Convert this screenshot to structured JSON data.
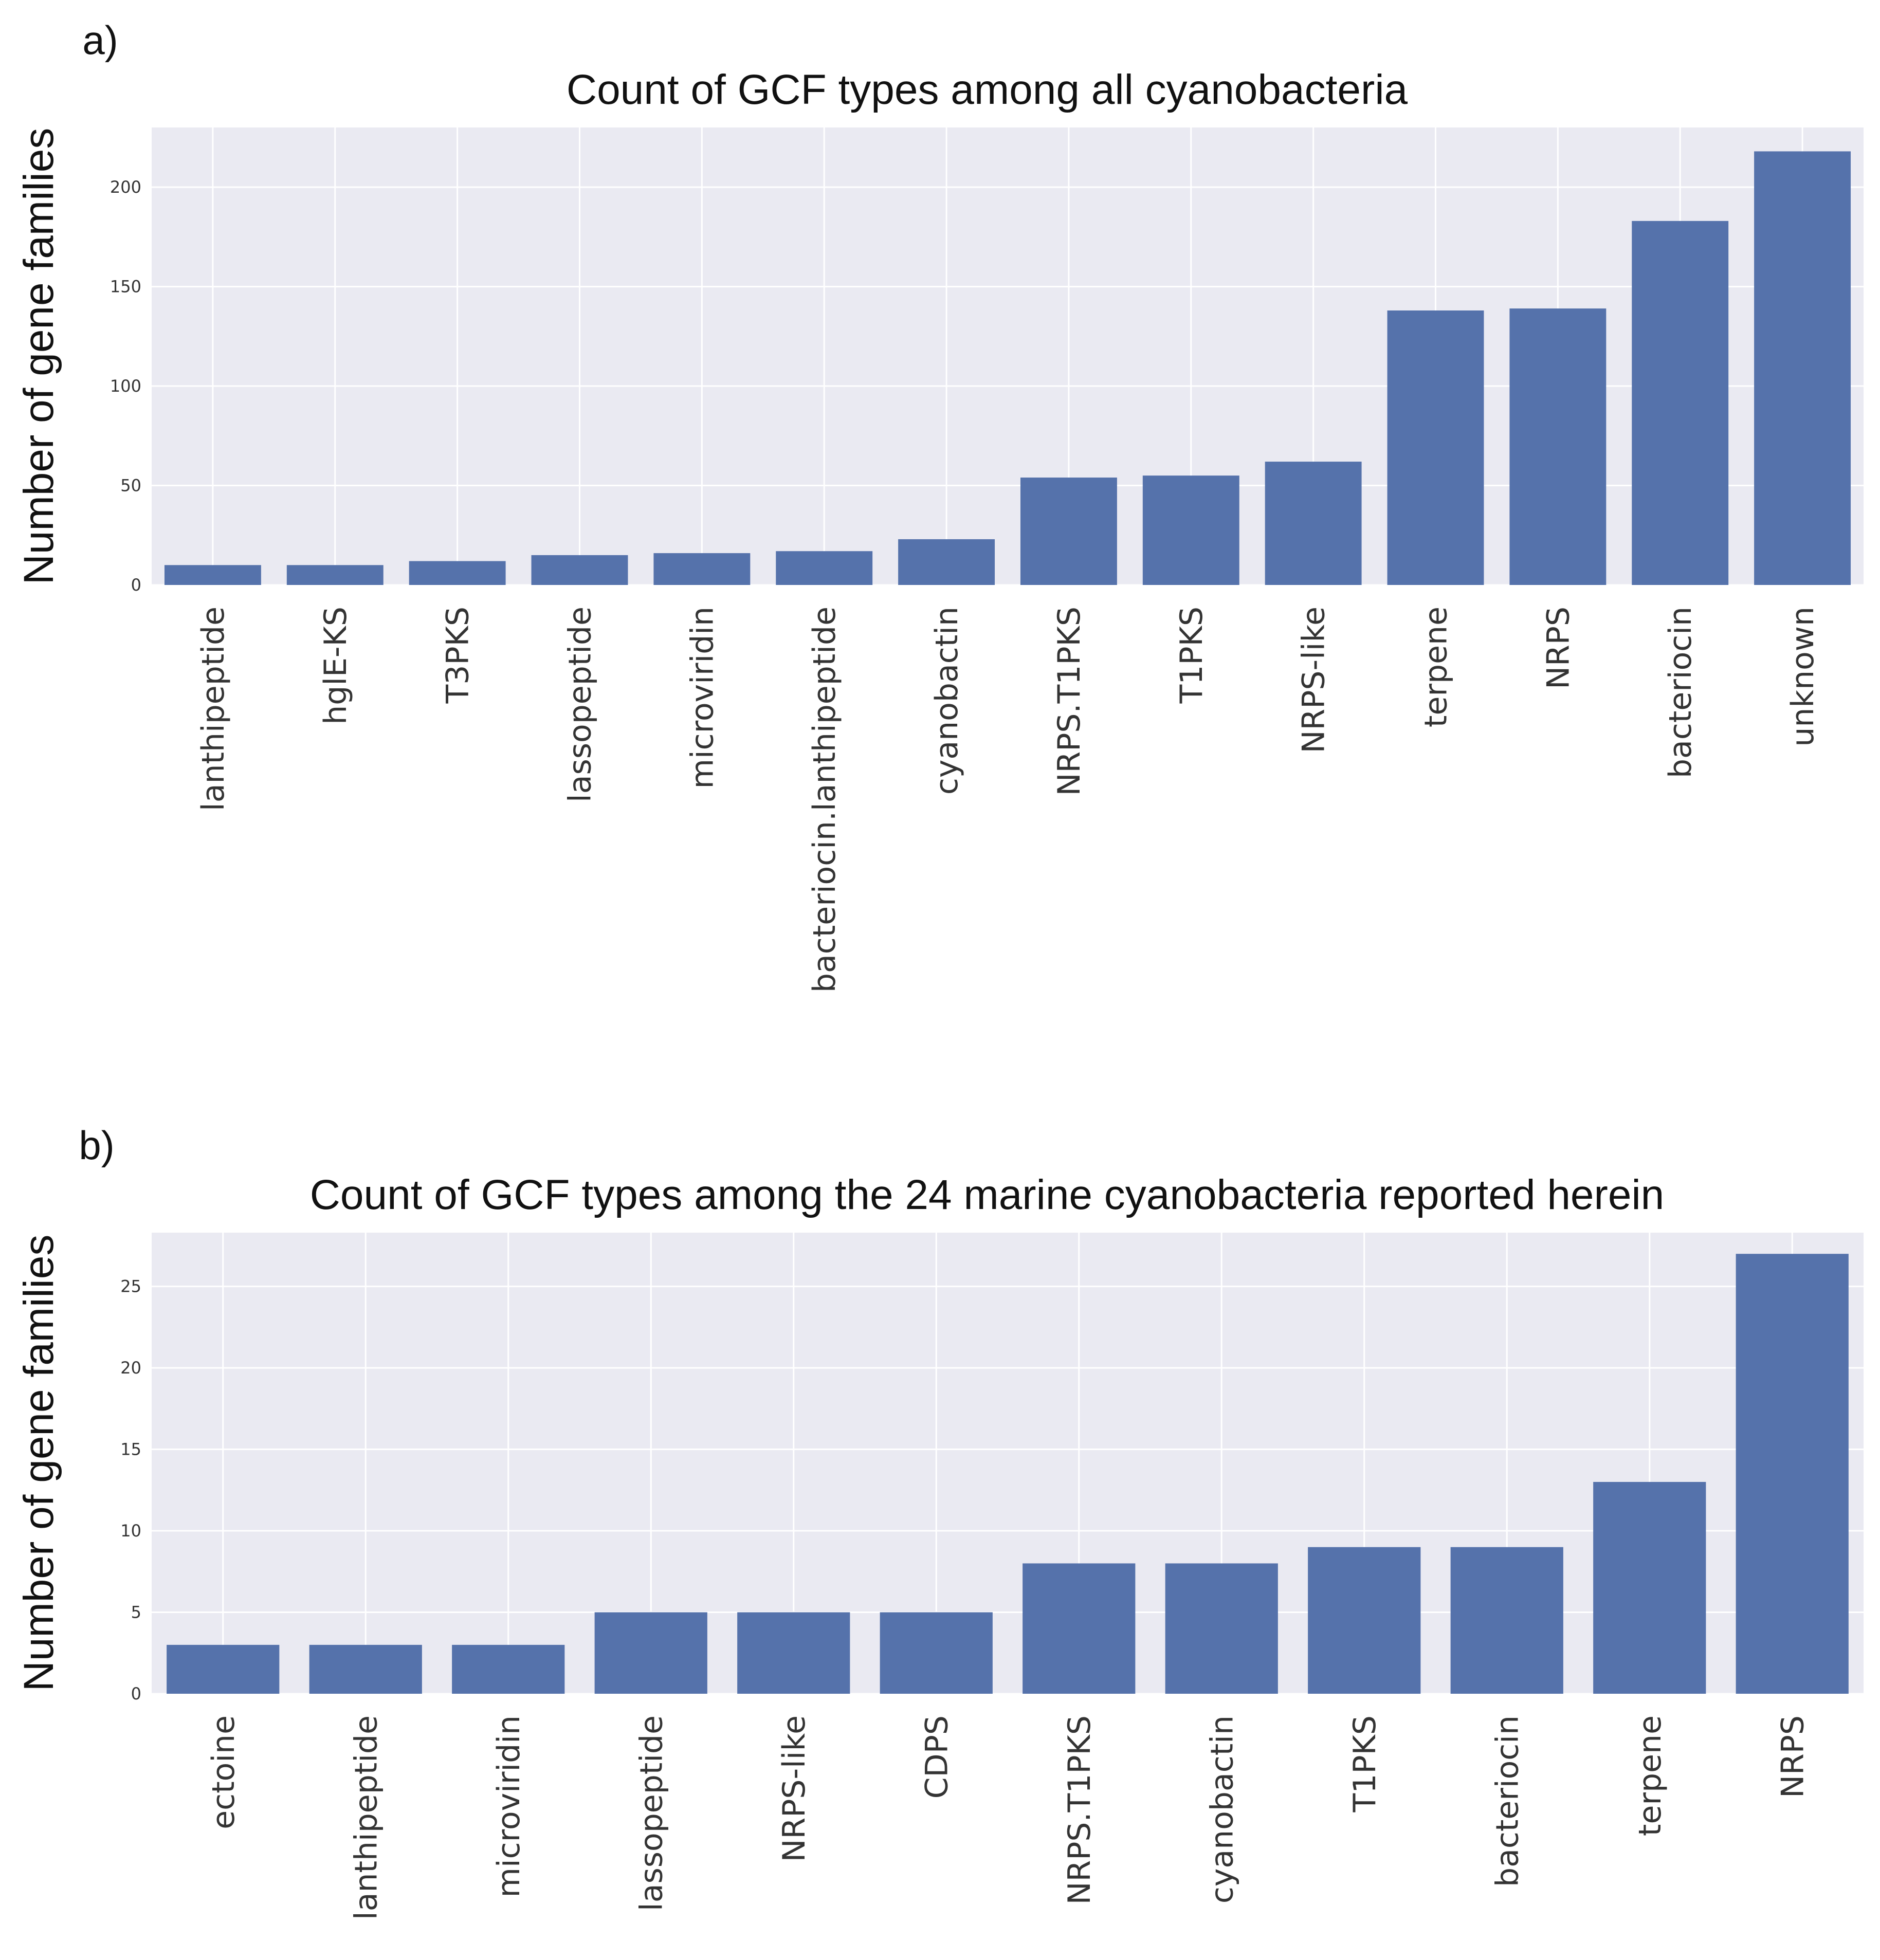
{
  "chart_data": [
    {
      "type": "bar",
      "panel": "a)",
      "title": "Count of GCF types among all cyanobacteria",
      "ylabel": "Number of gene families",
      "xlabel": "",
      "categories": [
        "lanthipeptide",
        "hglE-KS",
        "T3PKS",
        "lassopeptide",
        "microviridin",
        "bacteriocin.lanthipeptide",
        "cyanobactin",
        "NRPS.T1PKS",
        "T1PKS",
        "NRPS-like",
        "terpene",
        "NRPS",
        "bacteriocin",
        "unknown"
      ],
      "values": [
        10,
        10,
        12,
        15,
        16,
        17,
        23,
        54,
        55,
        62,
        138,
        139,
        183,
        218
      ],
      "ylim": [
        0,
        230
      ],
      "yticks": [
        0,
        50,
        100,
        150,
        200
      ],
      "grid": true,
      "bar_color": "#5572ab",
      "background_color": "#eaeaf2"
    },
    {
      "type": "bar",
      "panel": "b)",
      "title": "Count of GCF types among the 24 marine cyanobacteria reported herein",
      "ylabel": "Number of gene families",
      "xlabel": "",
      "categories": [
        "ectoine",
        "lanthipeptide",
        "microviridin",
        "lassopeptide",
        "NRPS-like",
        "CDPS",
        "NRPS.T1PKS",
        "cyanobactin",
        "T1PKS",
        "bacteriocin",
        "terpene",
        "NRPS"
      ],
      "values": [
        3,
        3,
        3,
        5,
        5,
        5,
        8,
        8,
        9,
        9,
        13,
        27
      ],
      "ylim": [
        0,
        28.3
      ],
      "yticks": [
        0,
        5,
        10,
        15,
        20,
        25
      ],
      "grid": true,
      "bar_color": "#5572ab",
      "background_color": "#eaeaf2"
    }
  ]
}
